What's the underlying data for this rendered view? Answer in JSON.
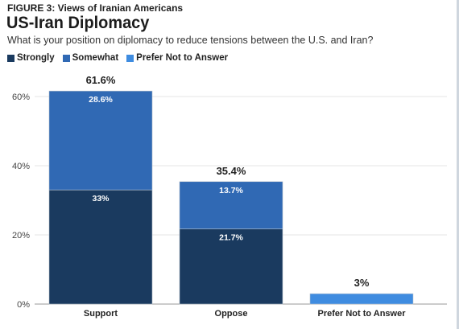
{
  "figure_label": "FIGURE 3: Views of Iranian Americans",
  "colors": {
    "strongly": "#1a3a5f",
    "somewhat": "#3069b4",
    "prefer_not": "#3f8ce0",
    "grid": "#e6e6e6",
    "axis": "#9a9a9a"
  },
  "chart_data": {
    "type": "bar",
    "stacked": true,
    "title": "US-Iran Diplomacy",
    "subtitle": "What is your position on diplomacy to reduce tensions between the U.S. and Iran?",
    "categories": [
      "Support",
      "Oppose",
      "Prefer Not to Answer"
    ],
    "series": [
      {
        "name": "Strongly",
        "values": [
          33,
          21.7,
          0
        ],
        "labels": [
          "33%",
          "21.7%",
          ""
        ]
      },
      {
        "name": "Somewhat",
        "values": [
          28.6,
          13.7,
          0
        ],
        "labels": [
          "28.6%",
          "13.7%",
          ""
        ]
      },
      {
        "name": "Prefer Not to Answer",
        "values": [
          0,
          0,
          3
        ],
        "labels": [
          "",
          "",
          ""
        ]
      }
    ],
    "totals": [
      "61.6%",
      "35.4%",
      "3%"
    ],
    "ylim": [
      0,
      60
    ],
    "yticks": [
      0,
      20,
      40,
      60
    ],
    "ytick_labels": [
      "0%",
      "20%",
      "40%",
      "60%"
    ],
    "legend_position": "top-left",
    "grid": true
  }
}
